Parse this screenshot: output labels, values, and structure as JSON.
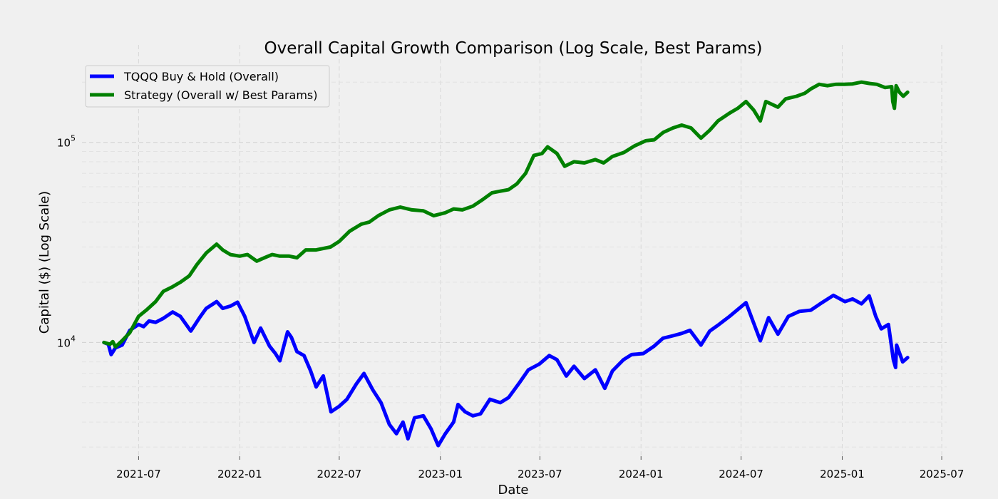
{
  "chart_data": {
    "type": "line",
    "title": "Overall Capital Growth Comparison (Log Scale, Best Params)",
    "xlabel": "Date",
    "ylabel": "Capital ($) (Log Scale)",
    "y_scale": "log",
    "ylim": [
      2700,
      240000
    ],
    "xlim": [
      "2021-03-20",
      "2025-07-10"
    ],
    "grid": true,
    "legend_position": "top-left",
    "x_ticks": [
      "2021-07",
      "2022-01",
      "2022-07",
      "2023-01",
      "2023-07",
      "2024-01",
      "2024-07",
      "2025-01",
      "2025-07"
    ],
    "y_ticks": [
      {
        "value": 10000,
        "base": "10",
        "exp": "4"
      },
      {
        "value": 100000,
        "base": "10",
        "exp": "5"
      }
    ],
    "series": [
      {
        "name": "TQQQ Buy & Hold (Overall)",
        "color": "#0000ff",
        "points": [
          [
            "2021-04-29",
            10000
          ],
          [
            "2021-05-07",
            9800
          ],
          [
            "2021-05-12",
            8700
          ],
          [
            "2021-05-20",
            9400
          ],
          [
            "2021-06-01",
            9700
          ],
          [
            "2021-06-15",
            11500
          ],
          [
            "2021-07-01",
            12300
          ],
          [
            "2021-07-10",
            12000
          ],
          [
            "2021-07-20",
            12800
          ],
          [
            "2021-08-01",
            12600
          ],
          [
            "2021-08-15",
            13200
          ],
          [
            "2021-09-01",
            14200
          ],
          [
            "2021-09-15",
            13500
          ],
          [
            "2021-10-04",
            11400
          ],
          [
            "2021-10-20",
            13300
          ],
          [
            "2021-11-01",
            14800
          ],
          [
            "2021-11-20",
            16000
          ],
          [
            "2021-12-01",
            14800
          ],
          [
            "2021-12-15",
            15200
          ],
          [
            "2021-12-28",
            15900
          ],
          [
            "2022-01-10",
            13500
          ],
          [
            "2022-01-27",
            10000
          ],
          [
            "2022-02-08",
            11800
          ],
          [
            "2022-02-24",
            9600
          ],
          [
            "2022-03-07",
            8800
          ],
          [
            "2022-03-15",
            8100
          ],
          [
            "2022-03-29",
            11300
          ],
          [
            "2022-04-05",
            10600
          ],
          [
            "2022-04-15",
            9000
          ],
          [
            "2022-04-28",
            8600
          ],
          [
            "2022-05-10",
            7200
          ],
          [
            "2022-05-20",
            6000
          ],
          [
            "2022-06-02",
            6800
          ],
          [
            "2022-06-16",
            4500
          ],
          [
            "2022-07-01",
            4800
          ],
          [
            "2022-07-15",
            5200
          ],
          [
            "2022-08-01",
            6200
          ],
          [
            "2022-08-15",
            7000
          ],
          [
            "2022-08-31",
            5800
          ],
          [
            "2022-09-15",
            5000
          ],
          [
            "2022-09-30",
            3900
          ],
          [
            "2022-10-13",
            3500
          ],
          [
            "2022-10-25",
            4000
          ],
          [
            "2022-11-03",
            3300
          ],
          [
            "2022-11-15",
            4200
          ],
          [
            "2022-12-01",
            4300
          ],
          [
            "2022-12-15",
            3700
          ],
          [
            "2022-12-28",
            3050
          ],
          [
            "2023-01-10",
            3500
          ],
          [
            "2023-01-25",
            4000
          ],
          [
            "2023-02-02",
            4900
          ],
          [
            "2023-02-15",
            4500
          ],
          [
            "2023-03-01",
            4300
          ],
          [
            "2023-03-15",
            4400
          ],
          [
            "2023-04-01",
            5200
          ],
          [
            "2023-04-20",
            5000
          ],
          [
            "2023-05-05",
            5300
          ],
          [
            "2023-05-25",
            6300
          ],
          [
            "2023-06-10",
            7300
          ],
          [
            "2023-06-30",
            7800
          ],
          [
            "2023-07-18",
            8600
          ],
          [
            "2023-08-01",
            8200
          ],
          [
            "2023-08-18",
            6800
          ],
          [
            "2023-09-01",
            7600
          ],
          [
            "2023-09-20",
            6600
          ],
          [
            "2023-10-10",
            7300
          ],
          [
            "2023-10-27",
            5900
          ],
          [
            "2023-11-10",
            7200
          ],
          [
            "2023-11-30",
            8200
          ],
          [
            "2023-12-15",
            8700
          ],
          [
            "2024-01-05",
            8800
          ],
          [
            "2024-01-25",
            9600
          ],
          [
            "2024-02-10",
            10500
          ],
          [
            "2024-02-28",
            10800
          ],
          [
            "2024-03-15",
            11100
          ],
          [
            "2024-03-30",
            11500
          ],
          [
            "2024-04-19",
            9700
          ],
          [
            "2024-05-05",
            11400
          ],
          [
            "2024-05-20",
            12200
          ],
          [
            "2024-06-10",
            13500
          ],
          [
            "2024-07-10",
            15800
          ],
          [
            "2024-07-24",
            12500
          ],
          [
            "2024-08-05",
            10200
          ],
          [
            "2024-08-20",
            13300
          ],
          [
            "2024-09-06",
            11000
          ],
          [
            "2024-09-25",
            13500
          ],
          [
            "2024-10-15",
            14300
          ],
          [
            "2024-11-05",
            14500
          ],
          [
            "2024-11-25",
            15800
          ],
          [
            "2024-12-16",
            17200
          ],
          [
            "2025-01-06",
            16000
          ],
          [
            "2025-01-20",
            16500
          ],
          [
            "2025-02-05",
            15600
          ],
          [
            "2025-02-19",
            17100
          ],
          [
            "2025-03-03",
            13500
          ],
          [
            "2025-03-13",
            11700
          ],
          [
            "2025-03-26",
            12300
          ],
          [
            "2025-04-04",
            8200
          ],
          [
            "2025-04-08",
            7500
          ],
          [
            "2025-04-10",
            9700
          ],
          [
            "2025-04-21",
            8000
          ],
          [
            "2025-04-30",
            8400
          ]
        ]
      },
      {
        "name": "Strategy (Overall w/ Best Params)",
        "color": "#008000",
        "points": [
          [
            "2021-04-29",
            10000
          ],
          [
            "2021-05-10",
            9800
          ],
          [
            "2021-05-15",
            10100
          ],
          [
            "2021-05-20",
            9500
          ],
          [
            "2021-06-01",
            10200
          ],
          [
            "2021-06-15",
            11200
          ],
          [
            "2021-07-01",
            13500
          ],
          [
            "2021-07-15",
            14500
          ],
          [
            "2021-08-01",
            16000
          ],
          [
            "2021-08-15",
            18000
          ],
          [
            "2021-09-01",
            19000
          ],
          [
            "2021-09-15",
            20000
          ],
          [
            "2021-10-01",
            21500
          ],
          [
            "2021-10-15",
            24500
          ],
          [
            "2021-11-01",
            28000
          ],
          [
            "2021-11-20",
            31000
          ],
          [
            "2021-12-01",
            29000
          ],
          [
            "2021-12-15",
            27500
          ],
          [
            "2022-01-01",
            27000
          ],
          [
            "2022-01-15",
            27500
          ],
          [
            "2022-02-01",
            25500
          ],
          [
            "2022-02-15",
            26500
          ],
          [
            "2022-03-01",
            27500
          ],
          [
            "2022-03-15",
            27000
          ],
          [
            "2022-04-01",
            27000
          ],
          [
            "2022-04-15",
            26500
          ],
          [
            "2022-05-01",
            29000
          ],
          [
            "2022-05-20",
            29000
          ],
          [
            "2022-06-15",
            30000
          ],
          [
            "2022-07-01",
            32000
          ],
          [
            "2022-07-20",
            36000
          ],
          [
            "2022-08-10",
            39000
          ],
          [
            "2022-08-25",
            40000
          ],
          [
            "2022-09-10",
            43000
          ],
          [
            "2022-09-30",
            46000
          ],
          [
            "2022-10-20",
            47500
          ],
          [
            "2022-11-10",
            46000
          ],
          [
            "2022-12-01",
            45500
          ],
          [
            "2022-12-20",
            43000
          ],
          [
            "2023-01-10",
            44500
          ],
          [
            "2023-01-25",
            46500
          ],
          [
            "2023-02-10",
            46000
          ],
          [
            "2023-03-01",
            48000
          ],
          [
            "2023-03-20",
            52000
          ],
          [
            "2023-04-05",
            56000
          ],
          [
            "2023-04-20",
            57000
          ],
          [
            "2023-05-05",
            58000
          ],
          [
            "2023-05-20",
            62000
          ],
          [
            "2023-06-05",
            70000
          ],
          [
            "2023-06-20",
            86000
          ],
          [
            "2023-07-05",
            88000
          ],
          [
            "2023-07-15",
            95000
          ],
          [
            "2023-08-01",
            88000
          ],
          [
            "2023-08-15",
            76000
          ],
          [
            "2023-09-01",
            80000
          ],
          [
            "2023-09-20",
            79000
          ],
          [
            "2023-10-10",
            82000
          ],
          [
            "2023-10-25",
            79000
          ],
          [
            "2023-11-10",
            85000
          ],
          [
            "2023-12-01",
            89000
          ],
          [
            "2023-12-20",
            96000
          ],
          [
            "2024-01-10",
            102000
          ],
          [
            "2024-01-25",
            103000
          ],
          [
            "2024-02-10",
            112000
          ],
          [
            "2024-02-28",
            118000
          ],
          [
            "2024-03-15",
            122000
          ],
          [
            "2024-04-01",
            118000
          ],
          [
            "2024-04-19",
            105000
          ],
          [
            "2024-05-05",
            115000
          ],
          [
            "2024-05-20",
            128000
          ],
          [
            "2024-06-10",
            140000
          ],
          [
            "2024-06-25",
            148000
          ],
          [
            "2024-07-10",
            160000
          ],
          [
            "2024-07-24",
            145000
          ],
          [
            "2024-08-05",
            128000
          ],
          [
            "2024-08-15",
            160000
          ],
          [
            "2024-09-06",
            150000
          ],
          [
            "2024-09-20",
            165000
          ],
          [
            "2024-10-10",
            170000
          ],
          [
            "2024-10-25",
            176000
          ],
          [
            "2024-11-05",
            185000
          ],
          [
            "2024-11-20",
            195000
          ],
          [
            "2024-12-05",
            192000
          ],
          [
            "2024-12-20",
            195000
          ],
          [
            "2025-01-05",
            195000
          ],
          [
            "2025-01-20",
            196000
          ],
          [
            "2025-02-05",
            200000
          ],
          [
            "2025-02-20",
            197000
          ],
          [
            "2025-03-05",
            195000
          ],
          [
            "2025-03-20",
            188000
          ],
          [
            "2025-04-01",
            190000
          ],
          [
            "2025-04-03",
            160000
          ],
          [
            "2025-04-06",
            148000
          ],
          [
            "2025-04-09",
            192000
          ],
          [
            "2025-04-15",
            178000
          ],
          [
            "2025-04-22",
            170000
          ],
          [
            "2025-04-30",
            178000
          ]
        ]
      }
    ]
  }
}
